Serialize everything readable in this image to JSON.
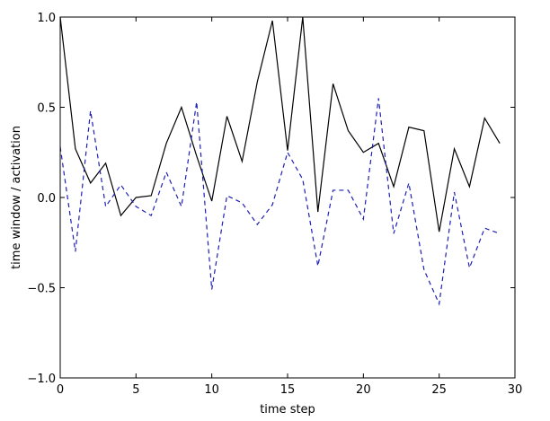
{
  "chart_data": {
    "type": "line",
    "title": "",
    "xlabel": "time step",
    "ylabel": "time window / activation",
    "xlim": [
      0,
      30
    ],
    "ylim": [
      -1.0,
      1.0
    ],
    "x_ticks": [
      "0",
      "5",
      "10",
      "15",
      "20",
      "25",
      "30"
    ],
    "y_ticks": [
      "−1.0",
      "−0.5",
      "0.0",
      "0.5",
      "1.0"
    ],
    "grid": false,
    "legend": "none",
    "x": [
      0,
      1,
      2,
      3,
      4,
      5,
      6,
      7,
      8,
      9,
      10,
      11,
      12,
      13,
      14,
      15,
      16,
      17,
      18,
      19,
      20,
      21,
      22,
      23,
      24,
      25,
      26,
      27,
      28,
      29
    ],
    "series": [
      {
        "style": "solid",
        "color": "#000000",
        "values": [
          1.0,
          0.27,
          0.08,
          0.19,
          -0.1,
          0.0,
          0.01,
          0.3,
          0.5,
          0.23,
          -0.02,
          0.45,
          0.2,
          0.64,
          0.98,
          0.26,
          1.0,
          -0.08,
          0.63,
          0.37,
          0.25,
          0.3,
          0.06,
          0.39,
          0.37,
          -0.19,
          0.27,
          0.06,
          0.44,
          0.3
        ]
      },
      {
        "style": "dashed",
        "color": "#1f1fb4",
        "values": [
          0.28,
          -0.3,
          0.48,
          -0.05,
          0.07,
          -0.05,
          -0.1,
          0.14,
          -0.05,
          0.53,
          -0.51,
          0.01,
          -0.03,
          -0.15,
          -0.04,
          0.25,
          0.1,
          -0.38,
          0.04,
          0.04,
          -0.12,
          0.55,
          -0.2,
          0.08,
          -0.4,
          -0.59,
          0.03,
          -0.39,
          -0.17,
          -0.2
        ]
      }
    ]
  }
}
